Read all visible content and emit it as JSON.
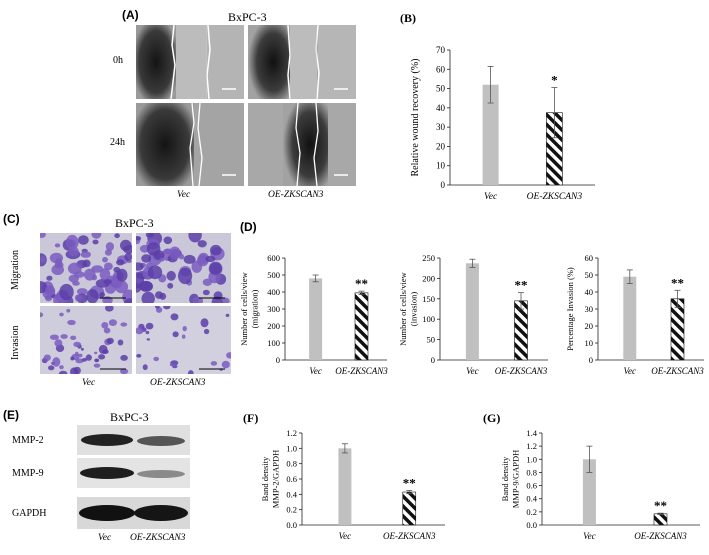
{
  "panels": {
    "A": {
      "label": "(A)",
      "title": "BxPC-3",
      "rows": [
        "0h",
        "24h"
      ],
      "cols": [
        "Vec",
        "OE-ZKSCAN3"
      ]
    },
    "C": {
      "label": "(C)",
      "title": "BxPC-3",
      "rows": [
        "Migration",
        "Invasion"
      ],
      "cols": [
        "Vec",
        "OE-ZKSCAN3"
      ]
    },
    "D": {
      "label": "(D)"
    },
    "E": {
      "label": "(E)",
      "title": "BxPC-3",
      "rows": [
        "MMP-2",
        "MMP-9",
        "GAPDH"
      ],
      "cols": [
        "Vec",
        "OE-ZKSCAN3"
      ]
    }
  },
  "chart_data": [
    {
      "id": "B",
      "panel_label": "(B)",
      "type": "bar",
      "categories": [
        "Vec",
        "OE-ZKSCAN3"
      ],
      "values": [
        52,
        37.5
      ],
      "errors": [
        9.5,
        13
      ],
      "significance": [
        "",
        "*"
      ],
      "ylabel": "Relative wound recovery (%)",
      "ylim": [
        0,
        70
      ],
      "yticks": [
        0,
        10,
        20,
        30,
        40,
        50,
        60,
        70
      ],
      "fills": [
        "solid",
        "hatched"
      ],
      "bar_color": "#c0c0c0"
    },
    {
      "id": "D1",
      "type": "bar",
      "categories": [
        "Vec",
        "OE-ZKSCAN3"
      ],
      "values": [
        480,
        395
      ],
      "errors": [
        20,
        10
      ],
      "significance": [
        "",
        "**"
      ],
      "ylabel": "Number of cells/view (migration)",
      "ylim": [
        0,
        600
      ],
      "yticks": [
        0,
        100,
        200,
        300,
        400,
        500,
        600
      ],
      "fills": [
        "solid",
        "hatched"
      ],
      "bar_color": "#c0c0c0"
    },
    {
      "id": "D2",
      "type": "bar",
      "categories": [
        "Vec",
        "OE-ZKSCAN3"
      ],
      "values": [
        237,
        145
      ],
      "errors": [
        10,
        20
      ],
      "significance": [
        "",
        "**"
      ],
      "ylabel": "Number of cells/view (invasion)",
      "ylim": [
        0,
        250
      ],
      "yticks": [
        0,
        50,
        100,
        150,
        200,
        250
      ],
      "fills": [
        "solid",
        "hatched"
      ],
      "bar_color": "#c0c0c0"
    },
    {
      "id": "D3",
      "type": "bar",
      "categories": [
        "Vec",
        "OE-ZKSCAN3"
      ],
      "values": [
        49,
        36
      ],
      "errors": [
        4,
        5
      ],
      "significance": [
        "",
        "**"
      ],
      "ylabel": "Percentage Invasion (%)",
      "ylim": [
        0,
        60
      ],
      "yticks": [
        0,
        10,
        20,
        30,
        40,
        50,
        60
      ],
      "fills": [
        "solid",
        "hatched"
      ],
      "bar_color": "#c0c0c0"
    },
    {
      "id": "F",
      "panel_label": "(F)",
      "type": "bar",
      "categories": [
        "Vec",
        "OE-ZKSCAN3"
      ],
      "values": [
        1.0,
        0.43
      ],
      "errors": [
        0.06,
        0.02
      ],
      "significance": [
        "",
        "**"
      ],
      "ylabel": "Band density MMP-2/GAPDH",
      "ylim": [
        0,
        1.2
      ],
      "yticks": [
        "0.0",
        "0.2",
        "0.4",
        "0.6",
        "0.8",
        "1.0",
        "1.2"
      ],
      "fills": [
        "solid",
        "hatched"
      ],
      "bar_color": "#c0c0c0"
    },
    {
      "id": "G",
      "panel_label": "(G)",
      "type": "bar",
      "categories": [
        "Vec",
        "OE-ZKSCAN3"
      ],
      "values": [
        1.0,
        0.17
      ],
      "errors": [
        0.2,
        0.01
      ],
      "significance": [
        "",
        "**"
      ],
      "ylabel": "Band density MMP-9/GAPDH",
      "ylim": [
        0,
        1.4
      ],
      "yticks": [
        "0.0",
        "0.2",
        "0.4",
        "0.6",
        "0.8",
        "1.0",
        "1.2",
        "1.4"
      ],
      "fills": [
        "solid",
        "hatched"
      ],
      "bar_color": "#c0c0c0"
    }
  ]
}
